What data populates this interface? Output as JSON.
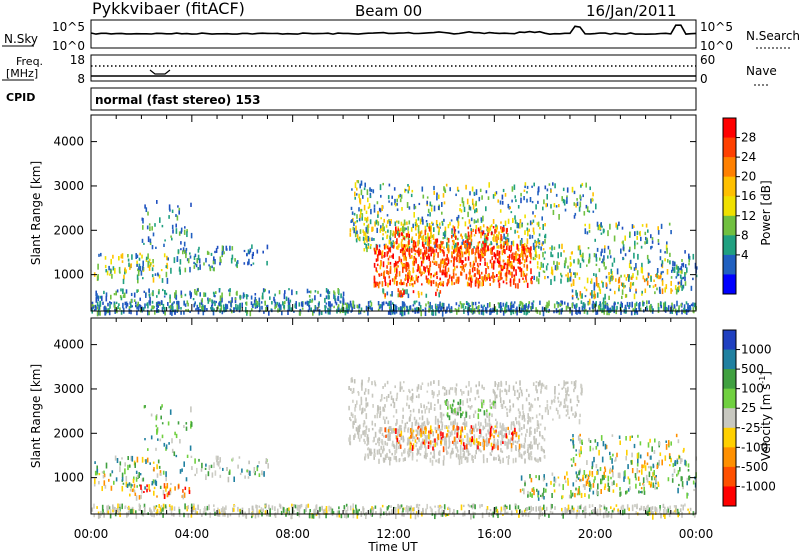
{
  "header": {
    "station": "Pykkvibaer (fitACF)",
    "beam": "Beam 00",
    "date": "16/Jan/2011"
  },
  "summary": {
    "nsky_label": "N.Sky",
    "nsky_ticks": [
      "10^5",
      "10^0"
    ],
    "nsearch_label": "N.Search",
    "nsearch_ticks": [
      "10^5",
      "10^0"
    ],
    "freq_label": "Freq.",
    "freq_unit": "[MHz]",
    "freq_ticks": [
      "18",
      "8"
    ],
    "nave_label": "Nave",
    "nave_ticks": [
      "60",
      "0"
    ],
    "cpid_label": "CPID",
    "cpid_value": "normal (fast stereo) 153"
  },
  "chart_data": [
    {
      "type": "heatmap",
      "name": "power-panel",
      "xlabel": "",
      "ylabel": "Slant Range [km]",
      "yticks": [
        "4000",
        "3000",
        "2000",
        "1000"
      ],
      "ylim": [
        180,
        4600
      ],
      "xlim_hours": [
        0,
        24
      ],
      "colorbar": {
        "label": "Power [dB]",
        "ticks": [
          "28",
          "24",
          "20",
          "16",
          "12",
          "8",
          "4"
        ],
        "colors": [
          "#ff0000",
          "#ff4000",
          "#ff8000",
          "#ffc000",
          "#f0e000",
          "#70c040",
          "#20a080",
          "#2060c0",
          "#0000ff"
        ]
      }
    },
    {
      "type": "heatmap",
      "name": "velocity-panel",
      "xlabel": "Time UT",
      "ylabel": "Slant Range [km]",
      "yticks": [
        "4000",
        "3000",
        "2000",
        "1000"
      ],
      "ylim": [
        180,
        4600
      ],
      "xlim_hours": [
        0,
        24
      ],
      "xticks": [
        "00:00",
        "04:00",
        "08:00",
        "12:00",
        "16:00",
        "20:00",
        "00:00"
      ],
      "colorbar": {
        "label": "Velocity [m s",
        "label_sup": "-1",
        "label_end": "]",
        "ticks": [
          "1000",
          "500",
          "100",
          "25",
          "-25",
          "-100",
          "-500",
          "-1000"
        ],
        "colors": [
          "#2040c0",
          "#2080a0",
          "#40a040",
          "#70d040",
          "#c8c8c0",
          "#ffd000",
          "#ff9000",
          "#ff5000",
          "#ff0000"
        ]
      }
    }
  ]
}
